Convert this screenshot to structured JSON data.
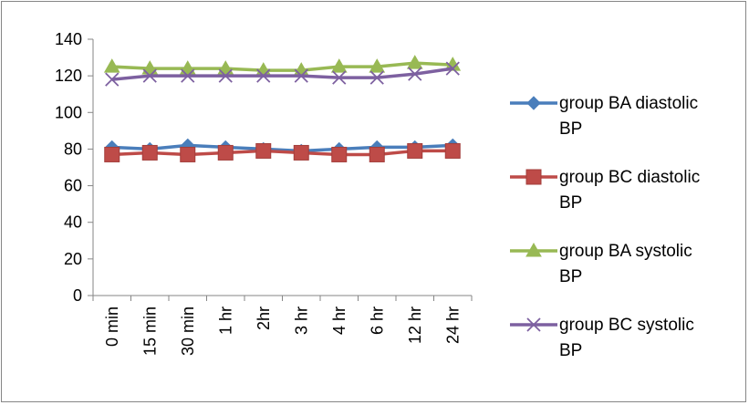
{
  "chart_data": {
    "type": "line",
    "title": "",
    "xlabel": "",
    "ylabel": "",
    "categories": [
      "0 min",
      "15 min",
      "30 min",
      "1 hr",
      "2hr",
      "3 hr",
      "4 hr",
      "6 hr",
      "12 hr",
      "24 hr"
    ],
    "ylim": [
      0,
      140
    ],
    "yticks": [
      0,
      20,
      40,
      60,
      80,
      100,
      120,
      140
    ],
    "grid": false,
    "legend_position": "right",
    "series": [
      {
        "name_line1": "group BA diastolic",
        "name_line2": "BP",
        "color": "#4a7ebb",
        "marker": "diamond",
        "values": [
          81,
          80,
          82,
          81,
          80,
          79,
          80,
          81,
          81,
          82
        ]
      },
      {
        "name_line1": "group BC diastolic",
        "name_line2": "BP",
        "color": "#be4b48",
        "marker": "square",
        "values": [
          77,
          78,
          77,
          78,
          79,
          78,
          77,
          77,
          79,
          79
        ]
      },
      {
        "name_line1": "group BA systolic",
        "name_line2": "BP",
        "color": "#98b954",
        "marker": "triangle",
        "values": [
          125,
          124,
          124,
          124,
          123,
          123,
          125,
          125,
          127,
          126
        ]
      },
      {
        "name_line1": "group BC systolic",
        "name_line2": "BP",
        "color": "#7d60a0",
        "marker": "x",
        "values": [
          118,
          120,
          120,
          120,
          120,
          120,
          119,
          119,
          121,
          124
        ]
      }
    ]
  }
}
